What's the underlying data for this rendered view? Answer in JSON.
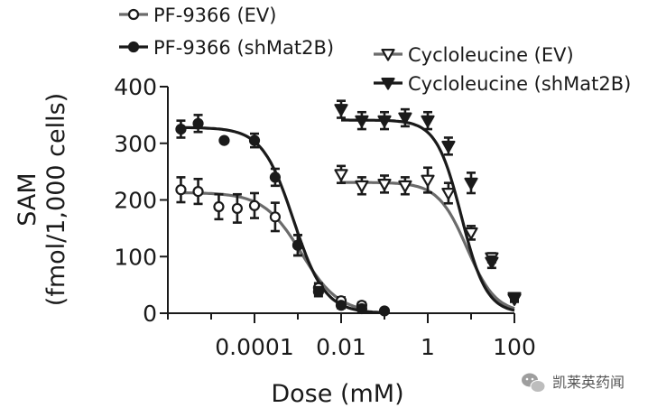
{
  "chart_data": {
    "type": "scatter",
    "title": "",
    "xlabel": "Dose (mM)",
    "ylabel": [
      "SAM",
      "(fmol/1,000 cells)"
    ],
    "x_scale": "log10",
    "xlim": [
      1e-06,
      100
    ],
    "ylim": [
      0,
      400
    ],
    "x_ticks": [
      {
        "value": 0.0001,
        "label": "0.0001"
      },
      {
        "value": 0.01,
        "label": "0.01"
      },
      {
        "value": 1,
        "label": "1"
      },
      {
        "value": 100,
        "label": "100"
      }
    ],
    "y_ticks": [
      {
        "value": 0,
        "label": "0"
      },
      {
        "value": 100,
        "label": "100"
      },
      {
        "value": 200,
        "label": "200"
      },
      {
        "value": 300,
        "label": "300"
      },
      {
        "value": 400,
        "label": "400"
      }
    ],
    "series": [
      {
        "name": "PF-9366 (EV)",
        "marker": "circle-open",
        "line_color": "#6b6b6b",
        "x": [
          2e-06,
          5e-06,
          1.5e-05,
          4e-05,
          0.0001,
          0.0003,
          0.001,
          0.003,
          0.01,
          0.03
        ],
        "y": [
          218,
          215,
          188,
          185,
          190,
          170,
          120,
          45,
          22,
          14
        ],
        "err": [
          22,
          22,
          22,
          25,
          22,
          25,
          18,
          8,
          6,
          5
        ],
        "fit": {
          "top": 213,
          "bottom": 0,
          "ec50": 0.0012,
          "hill": 1.0
        }
      },
      {
        "name": "PF-9366 (shMat2B)",
        "marker": "circle-filled",
        "line_color": "#1a1a1a",
        "x": [
          2e-06,
          5e-06,
          2e-05,
          0.0001,
          0.0003,
          0.001,
          0.003,
          0.01,
          0.03,
          0.1
        ],
        "y": [
          325,
          335,
          305,
          305,
          240,
          120,
          38,
          14,
          8,
          4
        ],
        "err": [
          15,
          15,
          0,
          12,
          15,
          18,
          8,
          5,
          4,
          3
        ],
        "fit": {
          "top": 328,
          "bottom": 0,
          "ec50": 0.0008,
          "hill": 1.2
        }
      },
      {
        "name": "Cycloleucine (EV)",
        "marker": "triangle-down-open",
        "line_color": "#6b6b6b",
        "x": [
          0.01,
          0.03,
          0.1,
          0.3,
          1,
          3,
          10,
          30,
          100
        ],
        "y": [
          245,
          225,
          228,
          225,
          235,
          212,
          142,
          98,
          28
        ],
        "err": [
          15,
          15,
          15,
          15,
          22,
          18,
          12,
          8,
          5
        ],
        "fit": {
          "top": 231,
          "bottom": 0,
          "ec50": 8,
          "hill": 1.3
        }
      },
      {
        "name": "Cycloleucine (shMat2B)",
        "marker": "triangle-down-filled",
        "line_color": "#1a1a1a",
        "x": [
          0.01,
          0.03,
          0.1,
          0.3,
          1,
          3,
          10,
          30,
          100
        ],
        "y": [
          360,
          340,
          340,
          345,
          340,
          295,
          230,
          90,
          25
        ],
        "err": [
          15,
          15,
          15,
          15,
          15,
          15,
          18,
          10,
          5
        ],
        "fit": {
          "top": 341,
          "bottom": 0,
          "ec50": 6,
          "hill": 1.5
        }
      }
    ],
    "legend": [
      {
        "label": "PF-9366 (EV)",
        "series": 0
      },
      {
        "label": "PF-9366 (shMat2B)",
        "series": 1
      },
      {
        "label": "Cycloleucine (EV)",
        "series": 2
      },
      {
        "label": "Cycloleucine (shMat2B)",
        "series": 3
      }
    ]
  },
  "watermark": {
    "text": "凯莱英药闻"
  }
}
